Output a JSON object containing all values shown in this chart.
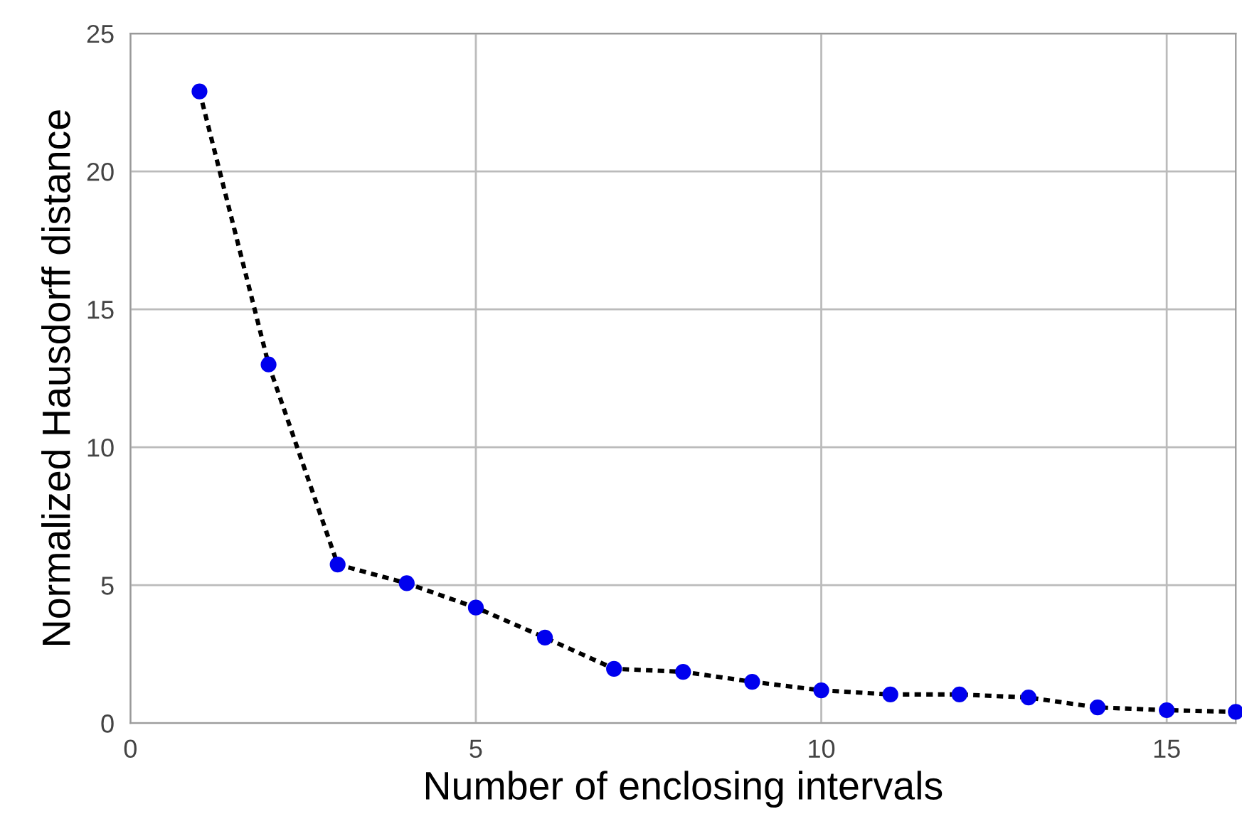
{
  "chart_data": {
    "type": "line",
    "xlabel": "Number of enclosing intervals",
    "ylabel": "Normalized Hausdorff distance",
    "x": [
      1,
      2,
      3,
      4,
      5,
      6,
      7,
      8,
      9,
      10,
      11,
      12,
      13,
      14,
      15,
      16
    ],
    "series": [
      {
        "color": "#0000ee",
        "values": [
          22.9,
          13.0,
          5.75,
          5.07,
          4.19,
          3.1,
          1.97,
          1.86,
          1.5,
          1.19,
          1.04,
          1.04,
          0.93,
          0.57,
          0.47,
          0.41
        ]
      }
    ],
    "xlim": [
      0,
      16
    ],
    "ylim": [
      0,
      25
    ],
    "xticks": [
      0,
      5,
      10,
      15
    ],
    "yticks": [
      0,
      5,
      10,
      15,
      20,
      25
    ],
    "grid": true,
    "marker": "circle",
    "line_style": "dotted",
    "legend": false
  }
}
